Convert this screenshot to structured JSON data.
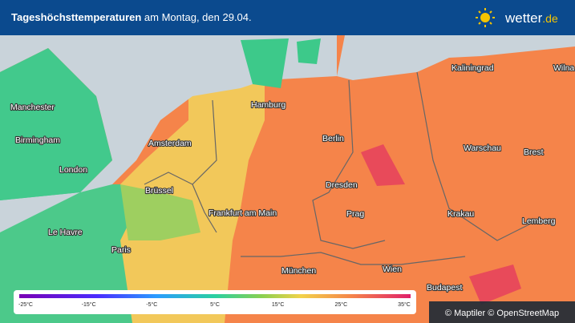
{
  "header": {
    "title_bold": "Tageshöchsttemperaturen",
    "title_rest": "am Montag, den 29.04.",
    "logo_name": "wetter",
    "logo_tld": ".de"
  },
  "cities": [
    "Kaliningrad",
    "Wilna",
    "Manchester",
    "Hamburg",
    "Birmingham",
    "Amsterdam",
    "Berlin",
    "Warschau",
    "Brest",
    "London",
    "Dresden",
    "Brüssel",
    "Frankfurt am Main",
    "Prag",
    "Krakau",
    "Lemberg",
    "Le Havre",
    "Paris",
    "München",
    "Wien",
    "Budapest"
  ],
  "legend": {
    "labels": [
      "-25°C",
      "-15°C",
      "-5°C",
      "5°C",
      "15°C",
      "25°C",
      "35°C"
    ]
  },
  "attribution": "© Maptiler © OpenStreetMap"
}
